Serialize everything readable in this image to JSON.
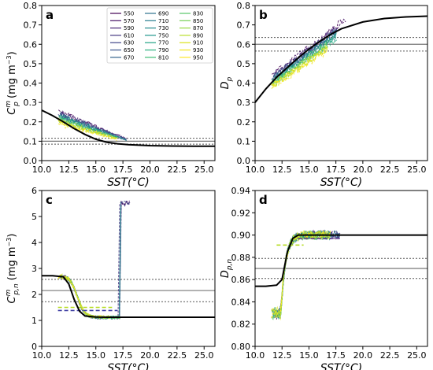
{
  "chart_data": [
    {
      "panel": "a",
      "type": "line",
      "xlabel": "SST(°C)",
      "ylabel": "C_p^m (mg m⁻³)",
      "ylabel_parts": {
        "main": "C",
        "sub": "p",
        "sup": "m",
        "unit": "(mg m",
        "unit_exp": "−3",
        "unit_close": ")"
      },
      "xlim": [
        10.0,
        26.0
      ],
      "ylim": [
        0.0,
        0.8
      ],
      "xticks": [
        "10.0",
        "12.5",
        "15.0",
        "17.5",
        "20.0",
        "22.5",
        "25.0"
      ],
      "yticks": [
        "0.0",
        "0.1",
        "0.2",
        "0.3",
        "0.4",
        "0.5",
        "0.6",
        "0.7",
        "0.8"
      ],
      "fit": [
        [
          10,
          0.26
        ],
        [
          11,
          0.232
        ],
        [
          12,
          0.2
        ],
        [
          13,
          0.165
        ],
        [
          14,
          0.135
        ],
        [
          15,
          0.11
        ],
        [
          16,
          0.095
        ],
        [
          17,
          0.087
        ],
        [
          18,
          0.082
        ],
        [
          20,
          0.077
        ],
        [
          22,
          0.075
        ],
        [
          24,
          0.074
        ],
        [
          26,
          0.074
        ]
      ],
      "hlines": {
        "solid": 0.1,
        "dotted": [
          0.085,
          0.115
        ]
      },
      "band": {
        "x_start": 11.5,
        "x_end": 18.5,
        "y_start_hi": 0.27,
        "y_start_lo": 0.17,
        "y_end_hi": 0.1,
        "y_end_lo": 0.08,
        "shape": "monotonic"
      },
      "legend": {
        "placement": "top-right",
        "entries": [
          "550",
          "570",
          "590",
          "610",
          "630",
          "650",
          "670",
          "690",
          "710",
          "730",
          "750",
          "770",
          "790",
          "810",
          "830",
          "850",
          "870",
          "890",
          "910",
          "930",
          "950"
        ]
      }
    },
    {
      "panel": "b",
      "type": "line",
      "xlabel": "SST(°C)",
      "ylabel": "D_p",
      "ylabel_parts": {
        "main": "D",
        "sub": "p"
      },
      "xlim": [
        10.0,
        26.0
      ],
      "ylim": [
        0.0,
        0.8
      ],
      "xticks": [
        "10.0",
        "12.5",
        "15.0",
        "17.5",
        "20.0",
        "22.5",
        "25.0"
      ],
      "yticks": [
        "0.0",
        "0.1",
        "0.2",
        "0.3",
        "0.4",
        "0.5",
        "0.6",
        "0.7",
        "0.8"
      ],
      "fit": [
        [
          10,
          0.3
        ],
        [
          11,
          0.37
        ],
        [
          12,
          0.43
        ],
        [
          13,
          0.48
        ],
        [
          14,
          0.53
        ],
        [
          15,
          0.575
        ],
        [
          16,
          0.615
        ],
        [
          17,
          0.65
        ],
        [
          18,
          0.68
        ],
        [
          20,
          0.715
        ],
        [
          22,
          0.733
        ],
        [
          24,
          0.741
        ],
        [
          26,
          0.745
        ]
      ],
      "hlines": {
        "solid": 0.6,
        "dotted": [
          0.565,
          0.635
        ]
      },
      "band": {
        "x_start": 11.5,
        "x_end": 18.5,
        "y_start_hi": 0.45,
        "y_start_lo": 0.35,
        "y_end_hi": 0.75,
        "y_end_lo": 0.6,
        "shape": "monotonic"
      }
    },
    {
      "panel": "c",
      "type": "line",
      "xlabel": "SST(°C)",
      "ylabel": "C_p,n^m (mg m⁻³)",
      "ylabel_parts": {
        "main": "C",
        "sub": "p,n",
        "sup": "m",
        "unit": "(mg m",
        "unit_exp": "−3",
        "unit_close": ")"
      },
      "xlim": [
        10.0,
        26.0
      ],
      "ylim": [
        0,
        6
      ],
      "xticks": [
        "10.0",
        "12.5",
        "15.0",
        "17.5",
        "20.0",
        "22.5",
        "25.0"
      ],
      "yticks": [
        "0",
        "1",
        "2",
        "3",
        "4",
        "5",
        "6"
      ],
      "fit": [
        [
          10,
          2.72
        ],
        [
          11,
          2.72
        ],
        [
          12,
          2.68
        ],
        [
          12.5,
          2.4
        ],
        [
          13,
          1.8
        ],
        [
          13.5,
          1.35
        ],
        [
          14,
          1.17
        ],
        [
          15,
          1.13
        ],
        [
          16,
          1.12
        ],
        [
          18,
          1.12
        ],
        [
          22,
          1.12
        ],
        [
          26,
          1.12
        ]
      ],
      "hlines": {
        "solid": 2.15,
        "dotted": [
          1.72,
          2.58
        ]
      },
      "band": {
        "x_start": 11.5,
        "x_end": 18.5,
        "shape": "step-spike",
        "step_hi": 2.7,
        "step_lo": 1.1,
        "step_center": 13.3,
        "spike_start": 17.2,
        "spike_top": 5.5
      },
      "dashes": [
        {
          "x1": 11.5,
          "x2": 17.0,
          "y": 1.38,
          "color": "#3a3aa0"
        },
        {
          "x1": 11.5,
          "x2": 16.5,
          "y": 1.5,
          "color": "#b8de29"
        }
      ]
    },
    {
      "panel": "d",
      "type": "line",
      "xlabel": "SST(°C)",
      "ylabel": "D_p,n",
      "ylabel_parts": {
        "main": "D",
        "sub": "p,n"
      },
      "xlim": [
        10.0,
        26.0
      ],
      "ylim": [
        0.8,
        0.94
      ],
      "xticks": [
        "10.0",
        "12.5",
        "15.0",
        "17.5",
        "20.0",
        "22.5",
        "25.0"
      ],
      "yticks": [
        "0.80",
        "0.82",
        "0.84",
        "0.86",
        "0.88",
        "0.90",
        "0.92",
        "0.94"
      ],
      "fit": [
        [
          10,
          0.854
        ],
        [
          11,
          0.854
        ],
        [
          12,
          0.855
        ],
        [
          12.5,
          0.86
        ],
        [
          13,
          0.885
        ],
        [
          13.5,
          0.897
        ],
        [
          14,
          0.9
        ],
        [
          16,
          0.9
        ],
        [
          20,
          0.9
        ],
        [
          26,
          0.9
        ]
      ],
      "hlines": {
        "solid": 0.87,
        "dotted": [
          0.861,
          0.879
        ]
      },
      "band": {
        "x_start": 11.5,
        "x_end": 18.5,
        "shape": "step",
        "step_hi": 0.9,
        "step_lo": 0.83,
        "step_center": 12.8
      },
      "dashes": [
        {
          "x1": 12.0,
          "x2": 14.5,
          "y": 0.891,
          "color": "#b8de29"
        },
        {
          "x1": 14.0,
          "x2": 18.0,
          "y": 0.897,
          "color": "#5a3a8e"
        }
      ]
    }
  ]
}
